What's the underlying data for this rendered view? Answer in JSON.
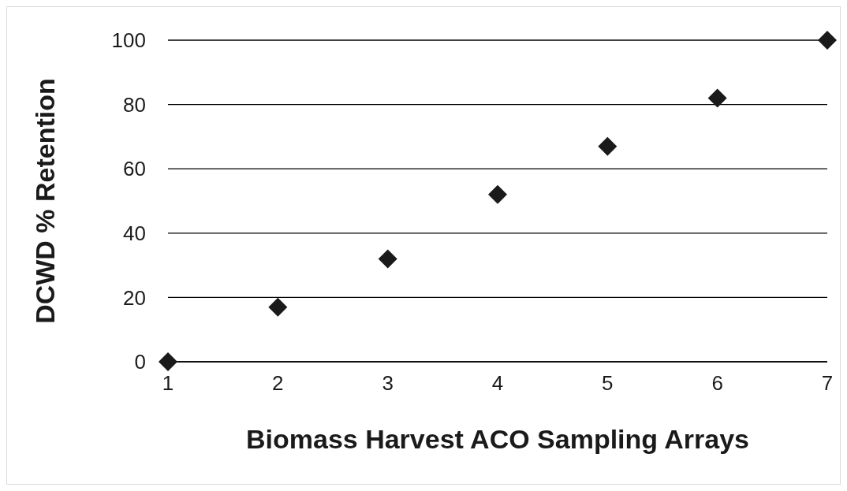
{
  "chart_data": {
    "type": "scatter",
    "xlabel": "Biomass Harvest ACO Sampling Arrays",
    "ylabel": "DCWD % Retention",
    "x": [
      1,
      2,
      3,
      4,
      5,
      6,
      7
    ],
    "series": [
      {
        "color": "#1a1a1a",
        "values": [
          0,
          17,
          32,
          52,
          67,
          82,
          100
        ]
      }
    ],
    "xlim": [
      1,
      7
    ],
    "xticks": [
      1,
      2,
      3,
      4,
      5,
      6,
      7
    ],
    "ylim": [
      0,
      100
    ],
    "yticks": [
      0,
      20,
      40,
      60,
      80,
      100
    ],
    "grid": "y",
    "marker": "diamond",
    "legend": false
  }
}
